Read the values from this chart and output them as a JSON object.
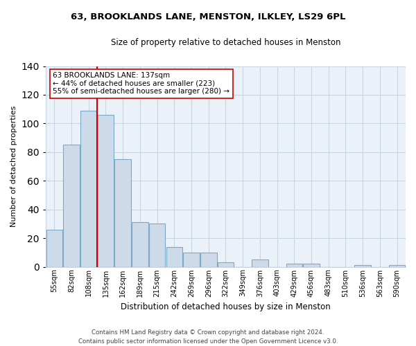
{
  "title": "63, BROOKLANDS LANE, MENSTON, ILKLEY, LS29 6PL",
  "subtitle": "Size of property relative to detached houses in Menston",
  "xlabel": "Distribution of detached houses by size in Menston",
  "ylabel": "Number of detached properties",
  "bar_labels": [
    "55sqm",
    "82sqm",
    "108sqm",
    "135sqm",
    "162sqm",
    "189sqm",
    "215sqm",
    "242sqm",
    "269sqm",
    "296sqm",
    "322sqm",
    "349sqm",
    "376sqm",
    "403sqm",
    "429sqm",
    "456sqm",
    "483sqm",
    "510sqm",
    "536sqm",
    "563sqm",
    "590sqm"
  ],
  "bar_heights": [
    26,
    85,
    109,
    106,
    75,
    31,
    30,
    14,
    10,
    10,
    3,
    0,
    5,
    0,
    2,
    2,
    0,
    0,
    1,
    0,
    1
  ],
  "bar_color": "#ccdaea",
  "bar_edgecolor": "#7aaac8",
  "vline_color": "#cc0000",
  "annotation_title": "63 BROOKLANDS LANE: 137sqm",
  "annotation_line1": "← 44% of detached houses are smaller (223)",
  "annotation_line2": "55% of semi-detached houses are larger (280) →",
  "annotation_box_edgecolor": "#cc0000",
  "ylim": [
    0,
    140
  ],
  "yticks": [
    0,
    20,
    40,
    60,
    80,
    100,
    120,
    140
  ],
  "footer_line1": "Contains HM Land Registry data © Crown copyright and database right 2024.",
  "footer_line2": "Contains public sector information licensed under the Open Government Licence v3.0.",
  "bg_color": "#ffffff",
  "plot_bg_color": "#eaf1f8",
  "grid_color": "#c8d4e0"
}
